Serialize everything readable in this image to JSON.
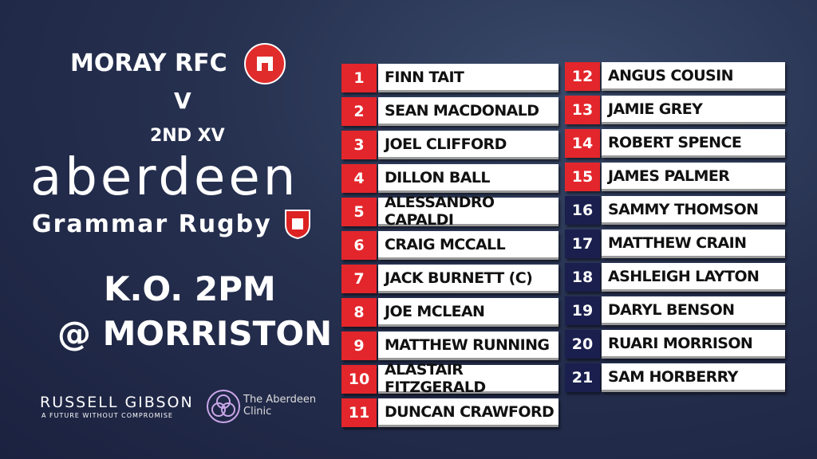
{
  "header": {
    "home_team": "MORAY RFC",
    "versus": "V",
    "away_team": "2ND XV",
    "club_word": "aberdeen",
    "club_sub": "Grammar Rugby"
  },
  "match": {
    "kickoff": "K.O. 2PM",
    "venue": "@ MORRISTON"
  },
  "sponsors": {
    "sponsor1": "RUSSELL GIBSON",
    "sponsor1_tagline": "A FUTURE WITHOUT COMPROMISE",
    "sponsor2": "The Aberdeen Clinic"
  },
  "players": [
    {
      "number": "1",
      "name": "FINN TAIT"
    },
    {
      "number": "2",
      "name": "SEAN MACDONALD"
    },
    {
      "number": "3",
      "name": "JOEL CLIFFORD"
    },
    {
      "number": "4",
      "name": "DILLON BALL"
    },
    {
      "number": "5",
      "name": "ALESSANDRO CAPALDI"
    },
    {
      "number": "6",
      "name": "CRAIG MCCALL"
    },
    {
      "number": "7",
      "name": "JACK BURNETT (C)"
    },
    {
      "number": "8",
      "name": "JOE MCLEAN"
    },
    {
      "number": "9",
      "name": "MATTHEW RUNNING"
    },
    {
      "number": "10",
      "name": "ALASTAIR FITZGERALD"
    },
    {
      "number": "11",
      "name": "DUNCAN CRAWFORD"
    },
    {
      "number": "12",
      "name": "ANGUS COUSIN"
    },
    {
      "number": "13",
      "name": "JAMIE GREY"
    },
    {
      "number": "14",
      "name": "ROBERT SPENCE"
    },
    {
      "number": "15",
      "name": "JAMES PALMER"
    },
    {
      "number": "16",
      "name": "SAMMY THOMSON"
    },
    {
      "number": "17",
      "name": "MATTHEW CRAIN"
    },
    {
      "number": "18",
      "name": "ASHLEIGH LAYTON"
    },
    {
      "number": "19",
      "name": "DARYL BENSON"
    },
    {
      "number": "20",
      "name": "RUARI MORRISON"
    },
    {
      "number": "21",
      "name": "SAM HORBERRY"
    }
  ]
}
